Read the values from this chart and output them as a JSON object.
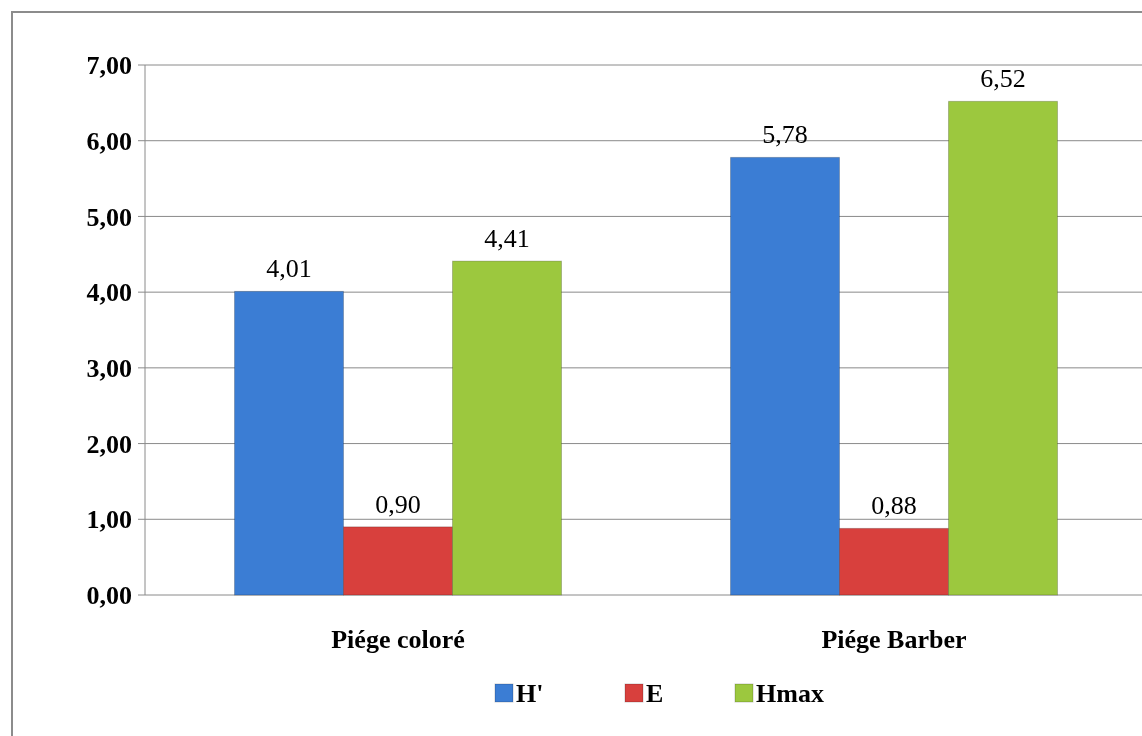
{
  "chart_data": {
    "type": "bar",
    "categories": [
      "Piége coloré",
      "Piége Barber"
    ],
    "series": [
      {
        "name": "H'",
        "color": "#3b7dd4",
        "values": [
          4.01,
          5.78
        ],
        "value_labels": [
          "4,01",
          "5,78"
        ]
      },
      {
        "name": "E",
        "color": "#d8403d",
        "values": [
          0.9,
          0.88
        ],
        "value_labels": [
          "0,90",
          "0,88"
        ]
      },
      {
        "name": "Hmax",
        "color": "#9cc83e",
        "values": [
          4.41,
          6.52
        ],
        "value_labels": [
          "4,41",
          "6,52"
        ]
      }
    ],
    "ylim": [
      0,
      7
    ],
    "yticks": [
      {
        "value": 0,
        "label": "0,00"
      },
      {
        "value": 1,
        "label": "1,00"
      },
      {
        "value": 2,
        "label": "2,00"
      },
      {
        "value": 3,
        "label": "3,00"
      },
      {
        "value": 4,
        "label": "4,00"
      },
      {
        "value": 5,
        "label": "5,00"
      },
      {
        "value": 6,
        "label": "6,00"
      },
      {
        "value": 7,
        "label": "7,00"
      }
    ],
    "grid": "y",
    "legend": "bottom"
  }
}
